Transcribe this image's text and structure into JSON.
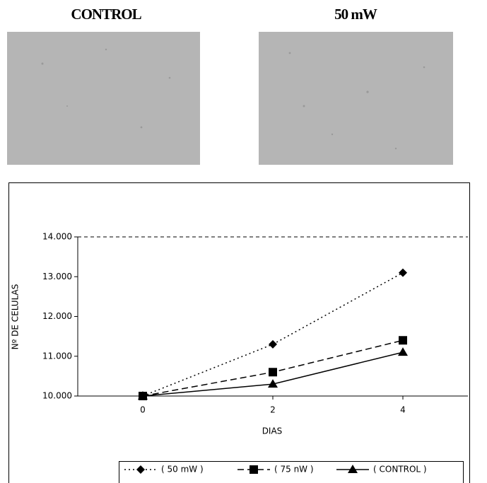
{
  "panels": [
    {
      "label": "CONTROL"
    },
    {
      "label": "50 mW"
    }
  ],
  "chart_data": {
    "type": "line",
    "x_label": "DIAS",
    "y_label": "Nº DE CELULAS",
    "x": [
      0,
      2,
      4
    ],
    "series": [
      {
        "name": "( 50 mW )",
        "color": "#000000",
        "dash": "2,4",
        "marker": "diamond",
        "values": [
          10000,
          11300,
          13100
        ]
      },
      {
        "name": "( 75 nW )",
        "color": "#000000",
        "dash": "9,5",
        "marker": "square",
        "values": [
          10000,
          10600,
          11400
        ]
      },
      {
        "name": "( CONTROL )",
        "color": "#000000",
        "dash": "none",
        "marker": "triangle",
        "values": [
          10000,
          10300,
          11100
        ]
      }
    ],
    "xlim": [
      -1,
      5
    ],
    "xticks": [
      0,
      2,
      4
    ],
    "ylim": [
      10000,
      14000
    ],
    "yticks": [
      {
        "value": 10000,
        "label": "10.000"
      },
      {
        "value": 11000,
        "label": "11.000"
      },
      {
        "value": 12000,
        "label": "12.000"
      },
      {
        "value": 13000,
        "label": "13.000"
      },
      {
        "value": 14000,
        "label": "14.000"
      }
    ],
    "legend": "bottom"
  }
}
